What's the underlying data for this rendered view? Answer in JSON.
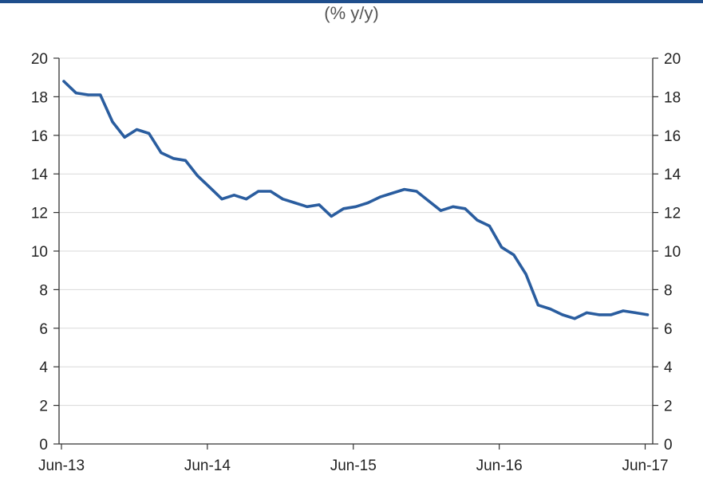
{
  "chart_data": {
    "type": "line",
    "subtitle": "(% y/y)",
    "x_start": "2013-05",
    "x_ticks": [
      "Jun-13",
      "Jun-14",
      "Jun-15",
      "Jun-16",
      "Jun-17"
    ],
    "ylim": [
      0,
      20
    ],
    "y_ticks": [
      "0",
      "2",
      "4",
      "6",
      "8",
      "10",
      "12",
      "14",
      "16",
      "18",
      "20"
    ],
    "secondary_y_ticks": [
      "0",
      "2",
      "4",
      "6",
      "8",
      "10",
      "12",
      "14",
      "16",
      "18",
      "20"
    ],
    "grid": true,
    "line_color": "#2a5d9f",
    "series": [
      {
        "values": [
          18.8,
          18.2,
          18.1,
          18.1,
          16.7,
          15.9,
          16.3,
          16.1,
          15.1,
          14.8,
          14.7,
          13.9,
          13.3,
          12.7,
          12.9,
          12.7,
          13.1,
          13.1,
          12.7,
          12.5,
          12.3,
          12.4,
          11.8,
          12.2,
          12.3,
          12.5,
          12.8,
          13.0,
          13.2,
          13.1,
          12.6,
          12.1,
          12.3,
          12.2,
          11.6,
          11.3,
          10.2,
          9.8,
          8.8,
          7.2,
          7.0,
          6.7,
          6.5,
          6.8,
          6.7,
          6.7,
          6.9,
          6.8,
          6.7
        ]
      }
    ]
  }
}
